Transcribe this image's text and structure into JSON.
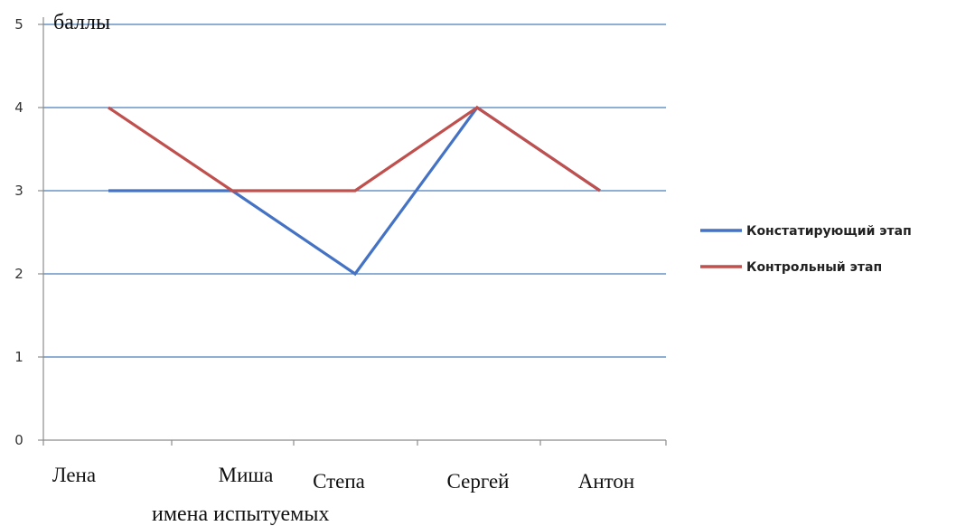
{
  "chart_data": {
    "type": "line",
    "categories": [
      "Лена",
      "Миша",
      "Степа",
      "Сергей",
      "Антон"
    ],
    "series": [
      {
        "name": "Констатирующий этап",
        "color": "#4472C4",
        "values": [
          3,
          3,
          2,
          4,
          3
        ]
      },
      {
        "name": "Контрольный этап",
        "color": "#C0504D",
        "values": [
          4,
          3,
          3,
          4,
          3
        ]
      }
    ],
    "xlabel": "имена испытуемых",
    "ylabel": "баллы",
    "ylim": [
      0,
      5
    ],
    "yticks": [
      "0",
      "1",
      "2",
      "3",
      "4",
      "5"
    ],
    "grid": true,
    "gridline_color": "#4A7EBB",
    "legend_position": "right"
  }
}
